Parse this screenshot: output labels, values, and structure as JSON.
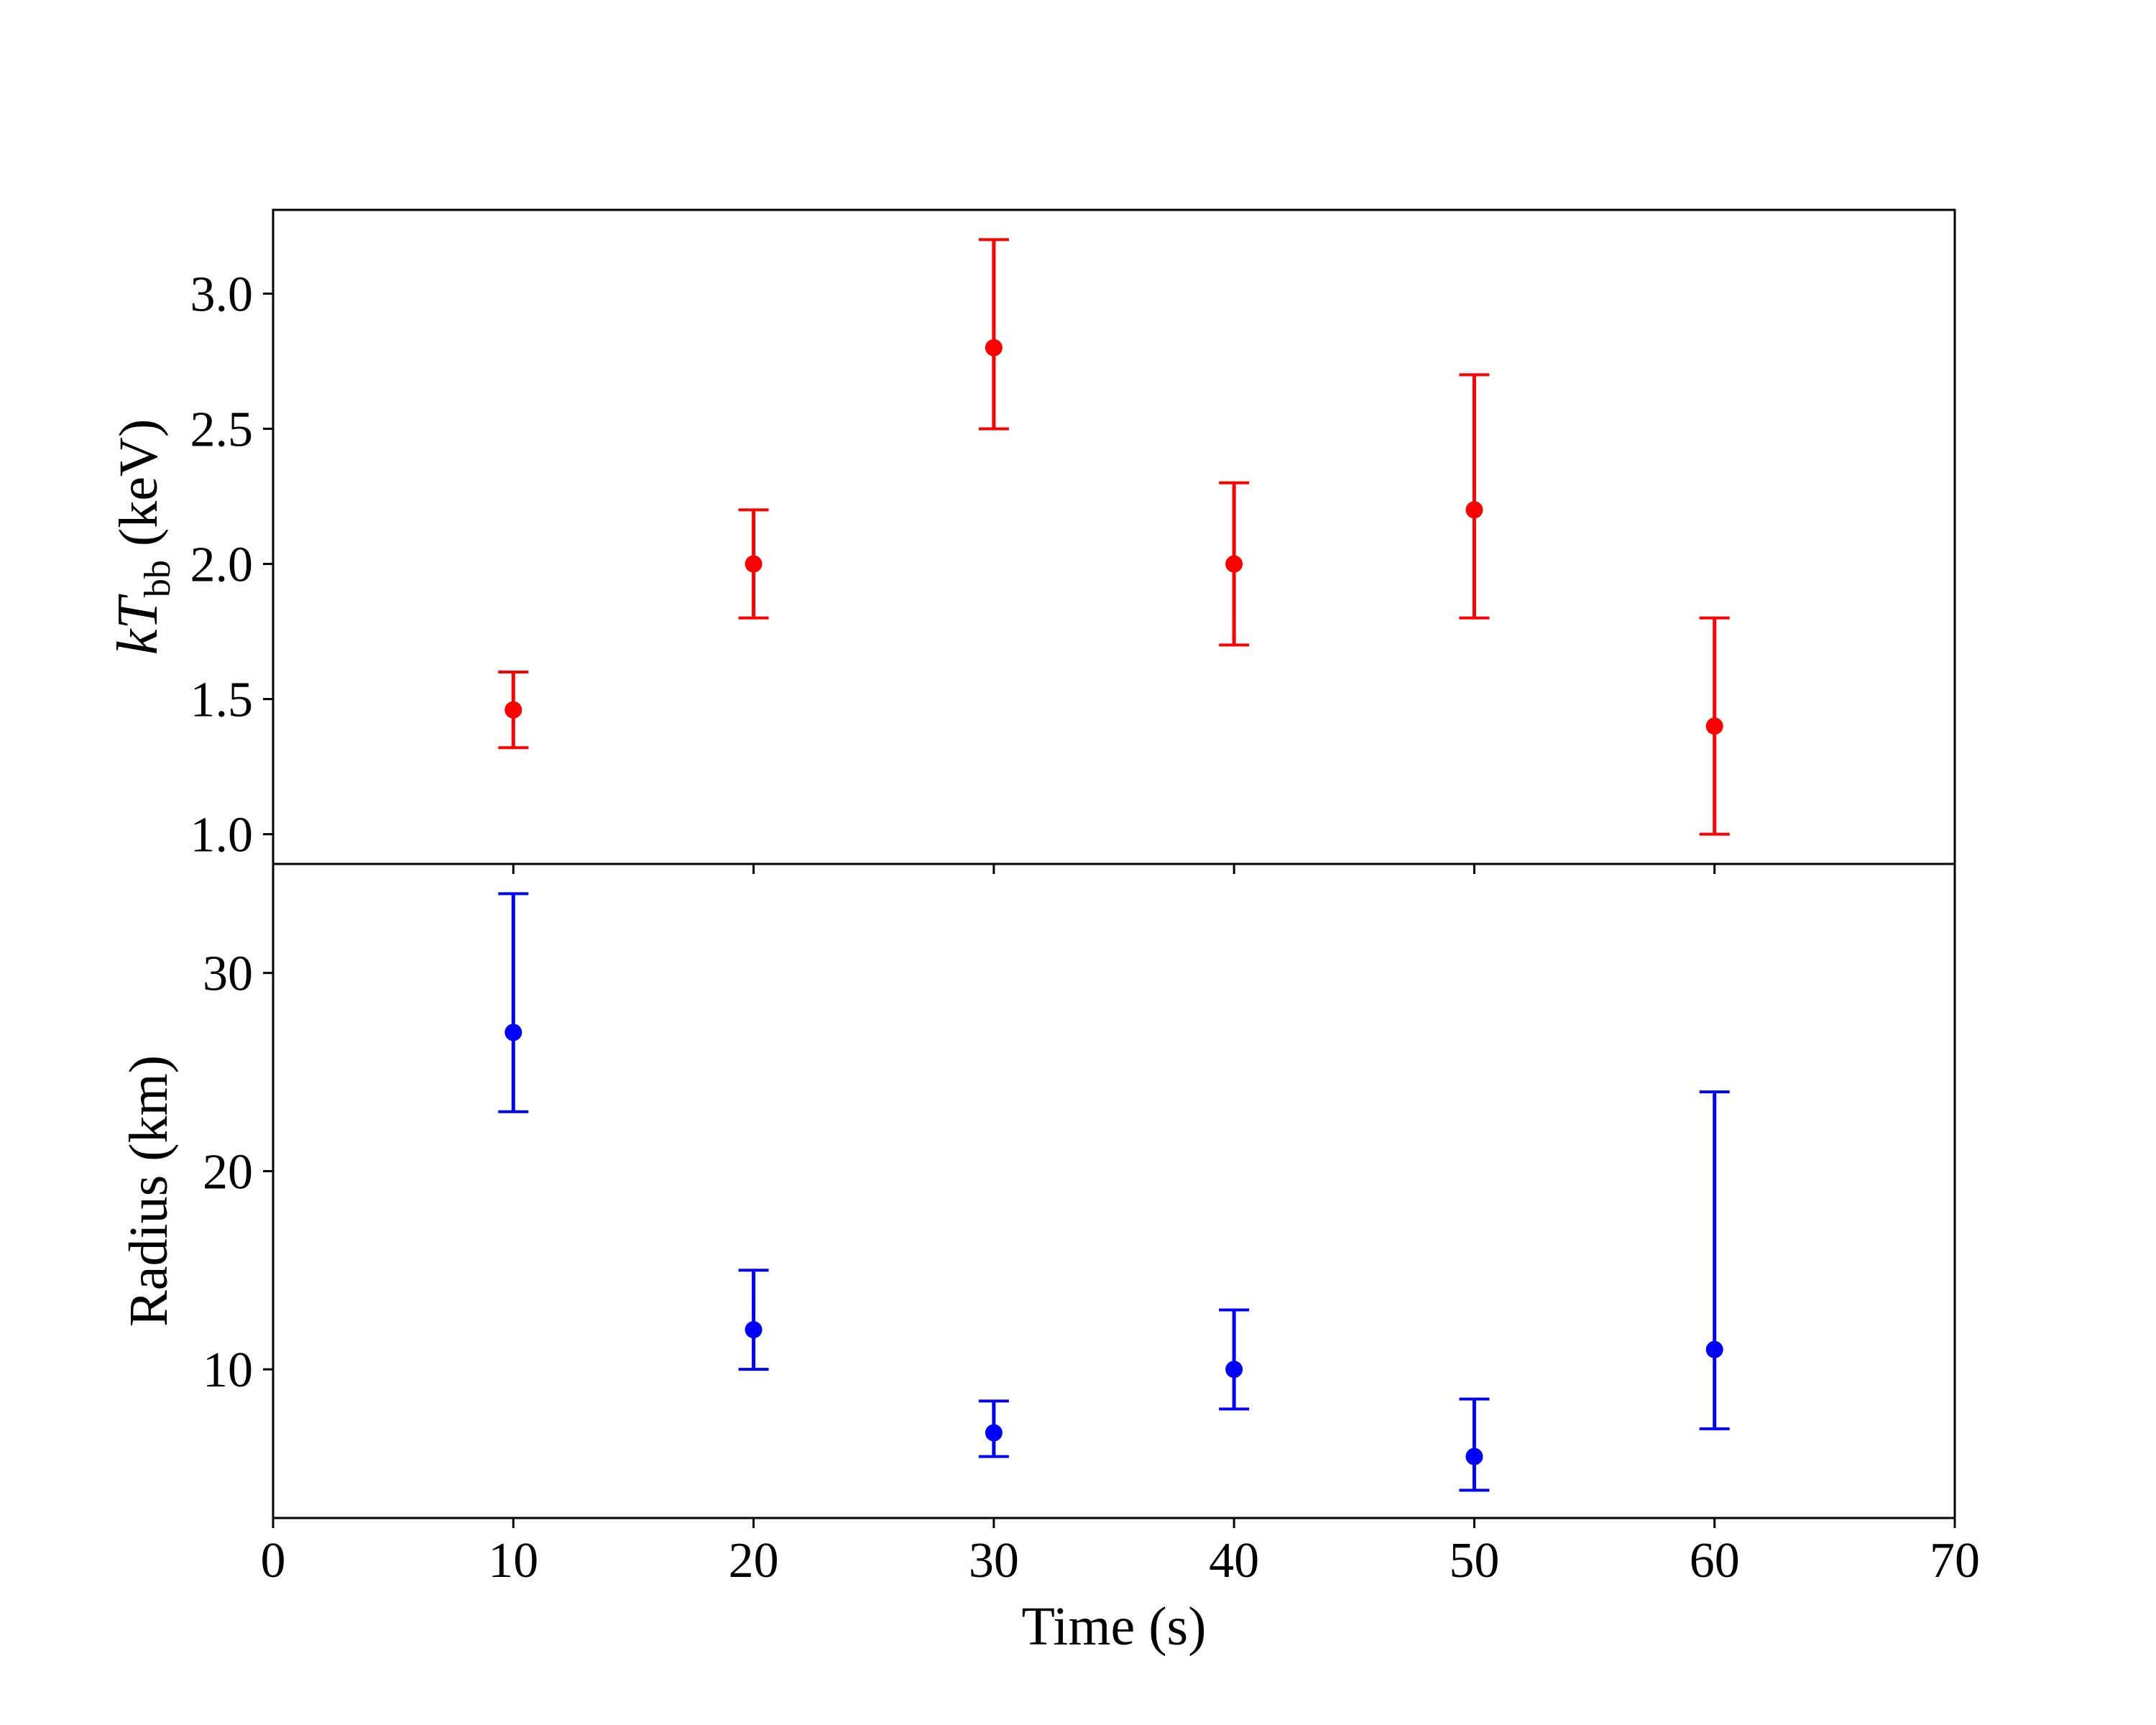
{
  "chart_data": [
    {
      "type": "scatter",
      "subtype": "errorbar",
      "panel": "top",
      "ylabel": {
        "main": "kT",
        "subscript": "bb",
        "unit": " (keV)"
      },
      "ylim": [
        0.89,
        3.31
      ],
      "yticks": [
        1.0,
        1.5,
        2.0,
        2.5,
        3.0
      ],
      "ytick_labels": [
        "1.0",
        "1.5",
        "2.0",
        "2.5",
        "3.0"
      ],
      "color": "#ff0000",
      "series": [
        {
          "x": [
            10,
            20,
            30,
            40,
            50,
            60
          ],
          "y": [
            1.46,
            2.0,
            2.8,
            2.0,
            2.2,
            1.4
          ],
          "yerr_low": [
            1.32,
            1.8,
            2.5,
            1.7,
            1.8,
            1.0
          ],
          "yerr_high": [
            1.6,
            2.2,
            3.2,
            2.3,
            2.7,
            1.8
          ]
        }
      ]
    },
    {
      "type": "scatter",
      "subtype": "errorbar",
      "panel": "bottom",
      "ylabel": "Radius (km)",
      "xlabel": "Time (s)",
      "xlim": [
        0,
        70
      ],
      "xticks": [
        0,
        10,
        20,
        30,
        40,
        50,
        60,
        70
      ],
      "xtick_labels": [
        "0",
        "10",
        "20",
        "30",
        "40",
        "50",
        "60",
        "70"
      ],
      "ylim": [
        2.5,
        35.5
      ],
      "yticks": [
        10,
        20,
        30
      ],
      "ytick_labels": [
        "10",
        "20",
        "30"
      ],
      "color": "#0000ff",
      "series": [
        {
          "x": [
            10,
            20,
            30,
            40,
            50,
            60
          ],
          "y": [
            27,
            12,
            6.8,
            10,
            5.6,
            11
          ],
          "yerr_low": [
            23,
            10,
            5.6,
            8,
            3.9,
            7
          ],
          "yerr_high": [
            34,
            15,
            8.4,
            13,
            8.5,
            24
          ]
        }
      ]
    }
  ]
}
